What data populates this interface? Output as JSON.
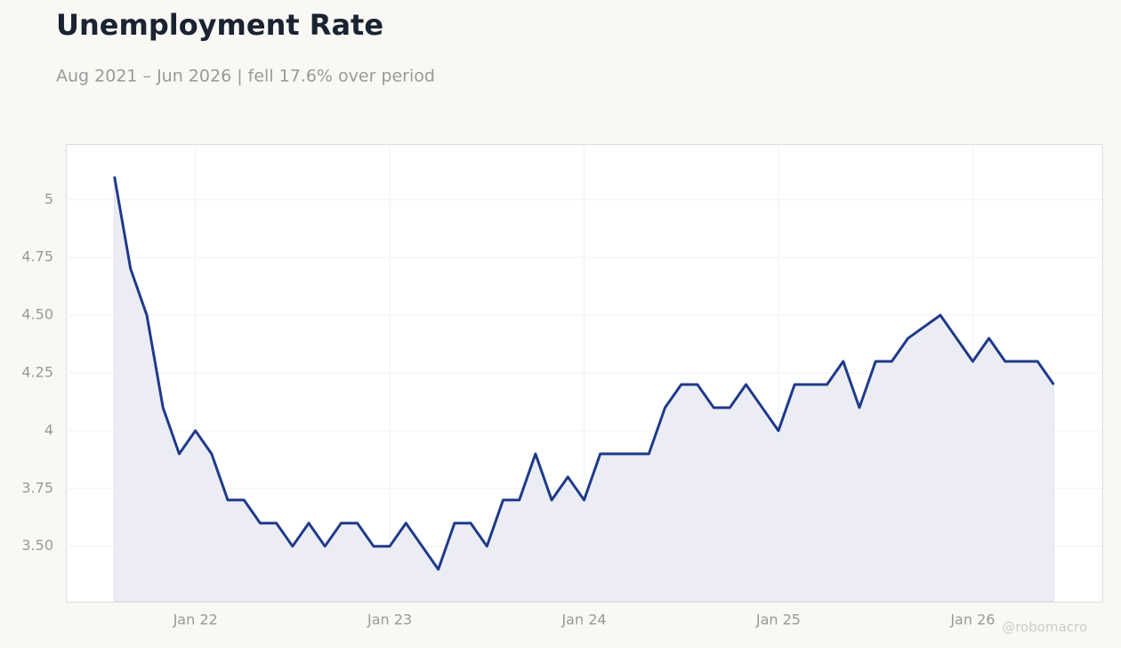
{
  "chart_data": {
    "type": "line",
    "title": "Unemployment Rate",
    "subtitle": "Aug 2021 – Jun 2026 | fell 17.6% over period",
    "watermark": "@robomacro",
    "x": [
      "2021-08",
      "2021-09",
      "2021-10",
      "2021-11",
      "2021-12",
      "2022-01",
      "2022-02",
      "2022-03",
      "2022-04",
      "2022-05",
      "2022-06",
      "2022-07",
      "2022-08",
      "2022-09",
      "2022-10",
      "2022-11",
      "2022-12",
      "2023-01",
      "2023-02",
      "2023-03",
      "2023-04",
      "2023-05",
      "2023-06",
      "2023-07",
      "2023-08",
      "2023-09",
      "2023-10",
      "2023-11",
      "2023-12",
      "2024-01",
      "2024-02",
      "2024-03",
      "2024-04",
      "2024-05",
      "2024-06",
      "2024-07",
      "2024-08",
      "2024-09",
      "2024-10",
      "2024-11",
      "2024-12",
      "2025-01",
      "2025-02",
      "2025-03",
      "2025-04",
      "2025-05",
      "2025-06",
      "2025-07",
      "2025-08",
      "2025-09",
      "2025-10",
      "2025-11",
      "2025-12",
      "2026-01",
      "2026-02",
      "2026-03",
      "2026-04",
      "2026-05",
      "2026-06"
    ],
    "series": [
      {
        "name": "Unemployment Rate",
        "color": "#1f3a8a",
        "fill": "#ecedf4",
        "values": [
          5.1,
          4.7,
          4.5,
          4.1,
          3.9,
          4.0,
          3.9,
          3.7,
          3.7,
          3.6,
          3.6,
          3.5,
          3.6,
          3.5,
          3.6,
          3.6,
          3.5,
          3.5,
          3.6,
          3.5,
          3.4,
          3.6,
          3.6,
          3.5,
          3.7,
          3.7,
          3.9,
          3.7,
          3.8,
          3.7,
          3.9,
          3.9,
          3.9,
          3.9,
          4.1,
          4.2,
          4.2,
          4.1,
          4.1,
          4.2,
          4.1,
          4.0,
          4.2,
          4.2,
          4.2,
          4.3,
          4.1,
          4.3,
          4.3,
          4.4,
          4.45,
          4.5,
          4.4,
          4.3,
          4.4,
          4.3,
          4.3,
          4.3,
          4.2
        ]
      }
    ],
    "xlim": [
      "2021-05",
      "2026-09"
    ],
    "xticks": [
      {
        "value": "2022-01",
        "label": "Jan 22"
      },
      {
        "value": "2023-01",
        "label": "Jan 23"
      },
      {
        "value": "2024-01",
        "label": "Jan 24"
      },
      {
        "value": "2025-01",
        "label": "Jan 25"
      },
      {
        "value": "2026-01",
        "label": "Jan 26"
      }
    ],
    "ylim": [
      3.26,
      5.24
    ],
    "yticks": [
      5,
      {
        "value": 4.75,
        "label": "4.75"
      },
      {
        "value": 4.5,
        "label": "4.50"
      },
      {
        "value": 4.25,
        "label": "4.25"
      },
      4,
      {
        "value": 3.75,
        "label": "3.75"
      },
      {
        "value": 3.5,
        "label": "3.50"
      }
    ],
    "grid": true
  }
}
